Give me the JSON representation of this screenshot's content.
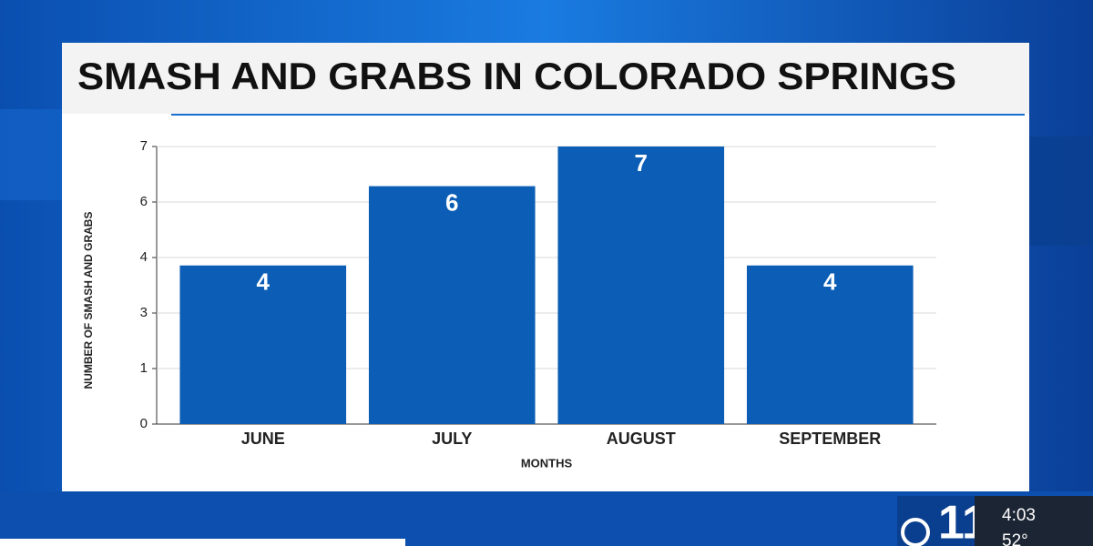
{
  "chart_data": {
    "type": "bar",
    "title": "SMASH AND GRABS IN COLORADO SPRINGS",
    "x_label": "MONTHS",
    "y_label": "NUMBER OF SMASH AND GRABS",
    "categories": [
      "JUNE",
      "JULY",
      "AUGUST",
      "SEPTEMBER"
    ],
    "values": [
      4,
      6,
      7,
      4
    ],
    "color": "#0b5db5",
    "ylim": [
      0,
      7
    ],
    "yticks": [
      0,
      {
        "value": 1.4,
        "label": "1"
      },
      {
        "value": 2.8,
        "label": "3"
      },
      {
        "value": 4.2,
        "label": "4"
      },
      {
        "value": 5.6,
        "label": "6"
      },
      7
    ],
    "grid": true
  },
  "overlay": {
    "time": "4:03",
    "temperature": "52°",
    "channel": "11"
  }
}
